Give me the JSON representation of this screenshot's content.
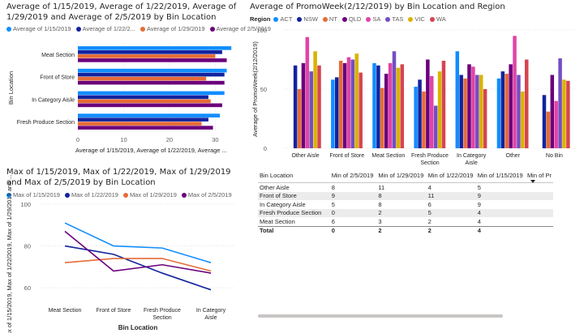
{
  "visuals": {
    "avg_bar": {
      "title": "Average of 1/15/2019, Average of 1/22/2019, Average of 1/29/2019 and Average of 2/5/2019 by Bin Location",
      "legend": [
        "Average of 1/15/2019",
        "Average of 1/22/2...",
        "Average of 1/29/2019",
        "Average of 2/5/2019"
      ]
    },
    "promo_col": {
      "title": "Average of PromoWeek(2/12/2019) by Bin Location and Region",
      "legend_title": "Region"
    },
    "max_line": {
      "title": "Max of 1/15/2019, Max of 1/22/2019, Max of 1/29/2019 and Max of 2/5/2019 by Bin Location",
      "legend": [
        "Max of 1/15/2019",
        "Max of 1/22/2019",
        "Max of 1/29/2019",
        "Max of 2/5/2019"
      ]
    },
    "matrix": {
      "headers": [
        "Bin Location",
        "Min of 2/5/2019",
        "Min of 1/29/2019",
        "Min of 1/22/2019",
        "Min of 1/15/2019",
        "Min of Pr"
      ],
      "rows": [
        {
          "label": "Other Aisle",
          "values": [
            "8",
            "11",
            "4",
            "5"
          ]
        },
        {
          "label": "Front of Store",
          "values": [
            "9",
            "8",
            "11",
            "9"
          ]
        },
        {
          "label": "In Category Aisle",
          "values": [
            "5",
            "8",
            "6",
            "9"
          ]
        },
        {
          "label": "Fresh Produce Section",
          "values": [
            "0",
            "2",
            "5",
            "4"
          ]
        },
        {
          "label": "Meat Section",
          "values": [
            "6",
            "3",
            "2",
            "4"
          ]
        }
      ],
      "total": {
        "label": "Total",
        "values": [
          "0",
          "2",
          "2",
          "4"
        ]
      }
    }
  },
  "chart_data": [
    {
      "type": "bar",
      "orientation": "horizontal",
      "categories": [
        "Meat Section",
        "Front of Store",
        "In Category Aisle",
        "Fresh Produce Section"
      ],
      "series": [
        {
          "name": "Average of 1/15/2019",
          "color": "#118dff",
          "values": [
            33.5,
            32.5,
            32,
            31
          ]
        },
        {
          "name": "Average of 1/22/2019",
          "color": "#12239e",
          "values": [
            31.5,
            32,
            28.5,
            28.5
          ]
        },
        {
          "name": "Average of 1/29/2019",
          "color": "#e66c37",
          "values": [
            30,
            28,
            29,
            27
          ]
        },
        {
          "name": "Average of 2/5/2019",
          "color": "#6b007b",
          "values": [
            32.5,
            32,
            31.5,
            29.5
          ]
        }
      ],
      "xlim": [
        0,
        34
      ],
      "xticks": [
        "0",
        "10",
        "20",
        "30"
      ],
      "xlabel": "Average of 1/15/2019, Average of 1/22/2019, Average of 1/29/2019 and Average of 2/5/2019",
      "xlabel_display": "Average of 1/15/2019, Average of 1/22/2019, Average ...",
      "ylabel": "Bin Location",
      "legend_position": "top-left"
    },
    {
      "type": "bar",
      "orientation": "vertical",
      "categories": [
        "Other Aisle",
        "Front of Store",
        "Meat Section",
        "Fresh Produce Section",
        "In Category Aisle",
        "Other",
        "No Bin"
      ],
      "category_labels": [
        [
          "Other Aisle"
        ],
        [
          "Front of Store"
        ],
        [
          "Meat Section"
        ],
        [
          "Fresh Produce",
          "Section"
        ],
        [
          "In Category",
          "Aisle"
        ],
        [
          "Other"
        ],
        [
          "No Bin"
        ]
      ],
      "series": [
        {
          "name": "ACT",
          "color": "#118dff",
          "values": [
            null,
            58,
            72,
            52,
            82,
            59,
            null
          ]
        },
        {
          "name": "NSW",
          "color": "#12239e",
          "values": [
            70,
            60,
            70,
            58,
            62,
            65,
            45
          ]
        },
        {
          "name": "NT",
          "color": "#e66c37",
          "values": [
            50,
            74,
            51,
            48,
            59,
            63,
            31
          ]
        },
        {
          "name": "QLD",
          "color": "#6b007b",
          "values": [
            72,
            72,
            63,
            75,
            71,
            71,
            62
          ]
        },
        {
          "name": "SA",
          "color": "#e044a7",
          "values": [
            94,
            77,
            72,
            61,
            69,
            95,
            40
          ]
        },
        {
          "name": "TAS",
          "color": "#744ec2",
          "values": [
            65,
            75,
            82,
            36,
            62,
            62,
            76
          ]
        },
        {
          "name": "VIC",
          "color": "#d9b300",
          "values": [
            82,
            80,
            68,
            65,
            62,
            48,
            58
          ]
        },
        {
          "name": "WA",
          "color": "#d64550",
          "values": [
            70,
            64,
            71,
            74,
            50,
            75,
            57
          ]
        }
      ],
      "ylim": [
        0,
        100
      ],
      "yticks": [
        "0",
        "50",
        "100"
      ],
      "ylabel": "Average of PromoWeek(2/12/2019)",
      "legend_title": "Region",
      "legend_position": "top-left"
    },
    {
      "type": "line",
      "categories": [
        "Meat Section",
        "Front of Store",
        "Fresh Produce Section",
        "In Category Aisle"
      ],
      "category_labels": [
        [
          "Meat Section"
        ],
        [
          "Front of Store"
        ],
        [
          "Fresh Produce",
          "Section"
        ],
        [
          "In Category",
          "Aisle"
        ]
      ],
      "series": [
        {
          "name": "Max of 1/15/2019",
          "color": "#118dff",
          "values": [
            91,
            80,
            79,
            72
          ]
        },
        {
          "name": "Max of 1/22/2019",
          "color": "#12239e",
          "values": [
            80,
            76,
            67,
            59
          ]
        },
        {
          "name": "Max of 1/29/2019",
          "color": "#e66c37",
          "values": [
            72,
            74,
            74,
            68
          ]
        },
        {
          "name": "Max of 2/5/2019",
          "color": "#6b007b",
          "values": [
            87,
            68,
            71,
            67
          ]
        }
      ],
      "ylim": [
        55,
        100
      ],
      "yticks": [
        "60",
        "80",
        "100"
      ],
      "xlabel": "Bin Location",
      "ylabel": "Max of 1/15/2019, Max of 1/22/2019, Max of 1/29/2019 and ...",
      "legend_position": "top-left"
    }
  ]
}
